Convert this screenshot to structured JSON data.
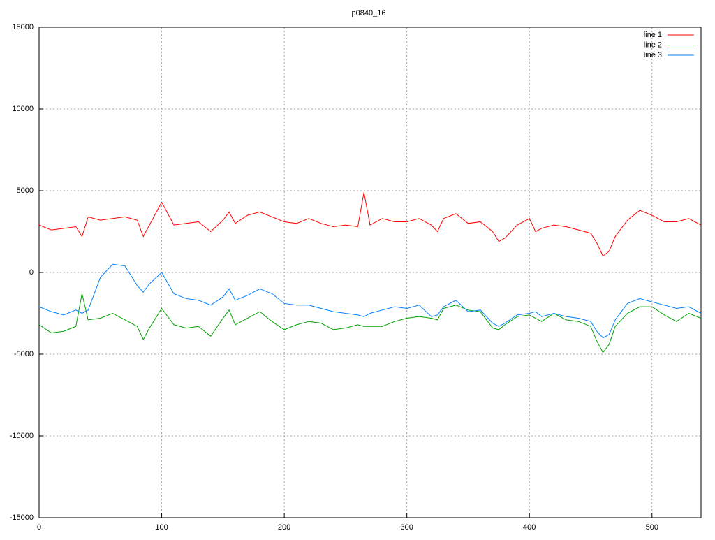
{
  "chart_data": {
    "type": "line",
    "title": "p0840_16",
    "x": [
      0,
      10,
      20,
      30,
      35,
      40,
      50,
      60,
      70,
      80,
      85,
      90,
      100,
      110,
      120,
      130,
      140,
      150,
      155,
      160,
      170,
      180,
      190,
      200,
      210,
      220,
      230,
      240,
      250,
      260,
      265,
      270,
      280,
      290,
      300,
      310,
      320,
      325,
      330,
      340,
      350,
      360,
      370,
      375,
      380,
      390,
      400,
      405,
      410,
      420,
      430,
      440,
      450,
      455,
      460,
      465,
      470,
      480,
      490,
      500,
      510,
      520,
      530,
      540
    ],
    "series": [
      {
        "name": "line 1",
        "color": "#ff0000",
        "values": [
          2900,
          2600,
          2700,
          2800,
          2200,
          3400,
          3200,
          3300,
          3400,
          3200,
          2200,
          2900,
          4300,
          2900,
          3000,
          3100,
          2500,
          3200,
          3700,
          3000,
          3500,
          3700,
          3400,
          3100,
          3000,
          3300,
          3000,
          2800,
          2900,
          2800,
          4900,
          2900,
          3300,
          3100,
          3100,
          3300,
          2900,
          2500,
          3300,
          3600,
          3000,
          3100,
          2500,
          1900,
          2100,
          2900,
          3300,
          2500,
          2700,
          2900,
          2800,
          2600,
          2400,
          1800,
          1000,
          1300,
          2200,
          3200,
          3800,
          3500,
          3100,
          3100,
          3300,
          2900
        ]
      },
      {
        "name": "line 2",
        "color": "#00a000",
        "values": [
          -3200,
          -3700,
          -3600,
          -3300,
          -1300,
          -2900,
          -2800,
          -2500,
          -2900,
          -3300,
          -4100,
          -3400,
          -2200,
          -3200,
          -3400,
          -3300,
          -3900,
          -2800,
          -2300,
          -3200,
          -2800,
          -2400,
          -3000,
          -3500,
          -3200,
          -3000,
          -3100,
          -3500,
          -3400,
          -3200,
          -3300,
          -3300,
          -3300,
          -3000,
          -2800,
          -2700,
          -2800,
          -2900,
          -2200,
          -2000,
          -2300,
          -2400,
          -3400,
          -3500,
          -3200,
          -2700,
          -2600,
          -2800,
          -3000,
          -2500,
          -2900,
          -3000,
          -3300,
          -4200,
          -4900,
          -4400,
          -3300,
          -2500,
          -2100,
          -2100,
          -2600,
          -3000,
          -2500,
          -2800
        ]
      },
      {
        "name": "line 3",
        "color": "#0080ff",
        "values": [
          -2100,
          -2400,
          -2600,
          -2300,
          -2500,
          -2300,
          -300,
          500,
          400,
          -800,
          -1200,
          -700,
          0,
          -1300,
          -1600,
          -1700,
          -2000,
          -1500,
          -1000,
          -1700,
          -1400,
          -1000,
          -1300,
          -1900,
          -2000,
          -2000,
          -2200,
          -2400,
          -2500,
          -2600,
          -2700,
          -2500,
          -2300,
          -2100,
          -2200,
          -2000,
          -2700,
          -2600,
          -2100,
          -1700,
          -2400,
          -2300,
          -3100,
          -3300,
          -3100,
          -2600,
          -2500,
          -2400,
          -2700,
          -2500,
          -2700,
          -2800,
          -3000,
          -3600,
          -4000,
          -3800,
          -2900,
          -1900,
          -1600,
          -1800,
          -2000,
          -2200,
          -2100,
          -2500
        ]
      }
    ],
    "xlim": [
      0,
      540
    ],
    "xticks": [
      0,
      100,
      200,
      300,
      400,
      500
    ],
    "ylim": [
      -15000,
      15000
    ],
    "yticks": [
      -15000,
      -10000,
      -5000,
      0,
      5000,
      10000,
      15000
    ],
    "grid": true,
    "legend": "top-right"
  }
}
